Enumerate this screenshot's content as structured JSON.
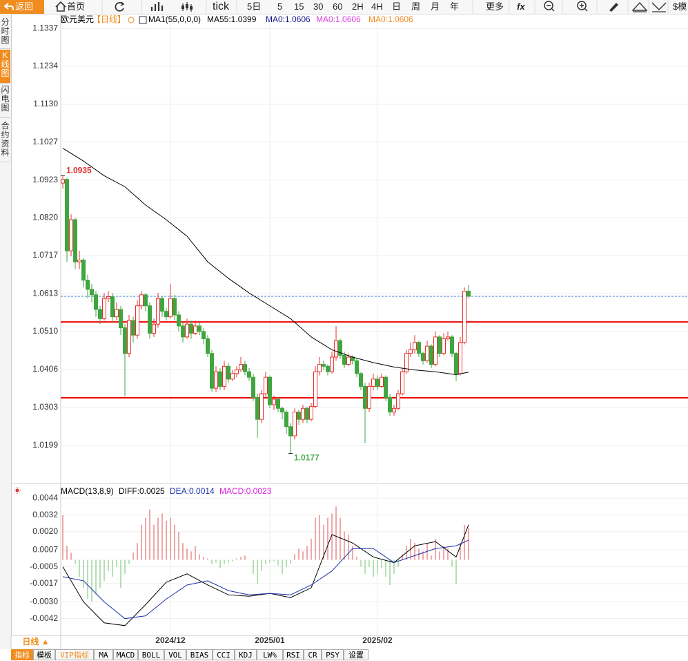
{
  "toolbar": {
    "back": "返回",
    "items": [
      "首页",
      "tick",
      "5日",
      "5",
      "15",
      "30",
      "60",
      "2H",
      "4H",
      "日",
      "周",
      "月",
      "年",
      "更多",
      "fx",
      "$模"
    ]
  },
  "sidebar": [
    "分时图",
    "K线图",
    "闪电图",
    "合约资料"
  ],
  "chart_data": [
    {
      "type": "candlestick",
      "title": "欧元美元",
      "period": "【日线】",
      "indicator": "MA1(55,0,0,0)",
      "legend": [
        {
          "text": "MA55:1.0399",
          "color": "#000000"
        },
        {
          "text": "MA0:1.0606",
          "color": "#1a1a8c"
        },
        {
          "text": "MA0:1.0606",
          "color": "#e040e0"
        },
        {
          "text": "MA0:1.0606",
          "color": "#f08c1e"
        }
      ],
      "ylim": [
        1.0095,
        1.1377
      ],
      "yticks": [
        1.1337,
        1.1234,
        {
          "value": 1.113,
          "label": "1.1130"
        },
        1.1027,
        1.0923,
        {
          "value": 1.082,
          "label": "1.0820"
        },
        1.0717,
        1.0613,
        {
          "value": 1.051,
          "label": "1.0510"
        },
        1.0406,
        1.0303,
        1.0199
      ],
      "xticks": [
        {
          "value": 26,
          "label": "2024/12"
        },
        {
          "value": 50,
          "label": "2025/01"
        },
        {
          "value": 76,
          "label": "2025/02"
        }
      ],
      "grid": true,
      "up_color": "#e8312f",
      "down_color": "#3fa63f",
      "candles": [
        [
          1.0915,
          1.0935,
          1.09,
          1.0925
        ],
        [
          1.0925,
          1.093,
          1.07,
          1.073
        ],
        [
          1.073,
          1.083,
          1.0715,
          1.0815
        ],
        [
          1.0815,
          1.082,
          1.068,
          1.07
        ],
        [
          1.07,
          1.073,
          1.068,
          1.0705
        ],
        [
          1.0705,
          1.071,
          1.063,
          1.065
        ],
        [
          1.065,
          1.0665,
          1.06,
          1.0625
        ],
        [
          1.0625,
          1.064,
          1.059,
          1.061
        ],
        [
          1.061,
          1.062,
          1.055,
          1.057
        ],
        [
          1.057,
          1.058,
          1.053,
          1.0545
        ],
        [
          1.0545,
          1.0615,
          1.054,
          1.06
        ],
        [
          1.06,
          1.062,
          1.059,
          1.0605
        ],
        [
          1.0605,
          1.0615,
          1.0535,
          1.055
        ],
        [
          1.055,
          1.059,
          1.054,
          1.057
        ],
        [
          1.057,
          1.058,
          1.05,
          1.052
        ],
        [
          1.052,
          1.053,
          1.0333,
          1.045
        ],
        [
          1.045,
          1.0555,
          1.044,
          1.054
        ],
        [
          1.054,
          1.055,
          1.048,
          1.05
        ],
        [
          1.05,
          1.0595,
          1.049,
          1.058
        ],
        [
          1.058,
          1.062,
          1.057,
          1.061
        ],
        [
          1.061,
          1.0615,
          1.0565,
          1.058
        ],
        [
          1.058,
          1.059,
          1.049,
          1.0505
        ],
        [
          1.0505,
          1.0545,
          1.0495,
          1.053
        ],
        [
          1.053,
          1.0615,
          1.052,
          1.06
        ],
        [
          1.06,
          1.0605,
          1.055,
          1.0565
        ],
        [
          1.0565,
          1.0575,
          1.054,
          1.055
        ],
        [
          1.055,
          1.064,
          1.0545,
          1.06
        ],
        [
          1.06,
          1.061,
          1.054,
          1.0555
        ],
        [
          1.0555,
          1.0565,
          1.051,
          1.0525
        ],
        [
          1.0525,
          1.0535,
          1.048,
          1.0495
        ],
        [
          1.0495,
          1.0545,
          1.049,
          1.053
        ],
        [
          1.053,
          1.054,
          1.049,
          1.0505
        ],
        [
          1.0505,
          1.054,
          1.05,
          1.0525
        ],
        [
          1.0525,
          1.0535,
          1.05,
          1.051
        ],
        [
          1.051,
          1.052,
          1.0475,
          1.049
        ],
        [
          1.049,
          1.05,
          1.044,
          1.045
        ],
        [
          1.045,
          1.046,
          1.0345,
          1.0355
        ],
        [
          1.0355,
          1.0415,
          1.0345,
          1.04
        ],
        [
          1.04,
          1.041,
          1.035,
          1.036
        ],
        [
          1.036,
          1.043,
          1.035,
          1.0415
        ],
        [
          1.0415,
          1.0425,
          1.037,
          1.038
        ],
        [
          1.038,
          1.0405,
          1.0375,
          1.0395
        ],
        [
          1.0395,
          1.0415,
          1.0385,
          1.0405
        ],
        [
          1.0405,
          1.044,
          1.04,
          1.042
        ],
        [
          1.042,
          1.043,
          1.039,
          1.04
        ],
        [
          1.04,
          1.041,
          1.0375,
          1.0385
        ],
        [
          1.0385,
          1.0395,
          1.032,
          1.033
        ],
        [
          1.033,
          1.034,
          1.022,
          1.027
        ],
        [
          1.027,
          1.035,
          1.026,
          1.034
        ],
        [
          1.034,
          1.04,
          1.033,
          1.0385
        ],
        [
          1.0385,
          1.039,
          1.03,
          1.031
        ],
        [
          1.031,
          1.0335,
          1.0295,
          1.0325
        ],
        [
          1.0325,
          1.033,
          1.029,
          1.03
        ],
        [
          1.03,
          1.0305,
          1.027,
          1.029
        ],
        [
          1.029,
          1.0295,
          1.023,
          1.025
        ],
        [
          1.025,
          1.026,
          1.0177,
          1.0225
        ],
        [
          1.0225,
          1.03,
          1.0215,
          1.029
        ],
        [
          1.029,
          1.0295,
          1.0255,
          1.027
        ],
        [
          1.027,
          1.031,
          1.026,
          1.03
        ],
        [
          1.03,
          1.0305,
          1.026,
          1.027
        ],
        [
          1.027,
          1.0315,
          1.0265,
          1.0305
        ],
        [
          1.0305,
          1.0415,
          1.03,
          1.04
        ],
        [
          1.04,
          1.044,
          1.039,
          1.042
        ],
        [
          1.042,
          1.043,
          1.0405,
          1.0415
        ],
        [
          1.0415,
          1.042,
          1.039,
          1.04
        ],
        [
          1.04,
          1.0455,
          1.0395,
          1.044
        ],
        [
          1.044,
          1.0525,
          1.043,
          1.0485
        ],
        [
          1.0485,
          1.049,
          1.0435,
          1.0445
        ],
        [
          1.0445,
          1.0455,
          1.041,
          1.042
        ],
        [
          1.042,
          1.045,
          1.0415,
          1.044
        ],
        [
          1.044,
          1.0445,
          1.042,
          1.043
        ],
        [
          1.043,
          1.0435,
          1.0385,
          1.0395
        ],
        [
          1.0395,
          1.04,
          1.035,
          1.036
        ],
        [
          1.036,
          1.037,
          1.0206,
          1.03
        ],
        [
          1.03,
          1.037,
          1.029,
          1.036
        ],
        [
          1.036,
          1.0395,
          1.035,
          1.038
        ],
        [
          1.038,
          1.039,
          1.035,
          1.036
        ],
        [
          1.036,
          1.0395,
          1.0355,
          1.0385
        ],
        [
          1.0385,
          1.039,
          1.032,
          1.033
        ],
        [
          1.033,
          1.034,
          1.028,
          1.029
        ],
        [
          1.029,
          1.031,
          1.028,
          1.03
        ],
        [
          1.03,
          1.035,
          1.0295,
          1.034
        ],
        [
          1.034,
          1.041,
          1.0335,
          1.04
        ],
        [
          1.04,
          1.046,
          1.0395,
          1.045
        ],
        [
          1.045,
          1.048,
          1.044,
          1.046
        ],
        [
          1.046,
          1.05,
          1.045,
          1.048
        ],
        [
          1.048,
          1.0485,
          1.044,
          1.045
        ],
        [
          1.045,
          1.0455,
          1.042,
          1.043
        ],
        [
          1.043,
          1.0485,
          1.0425,
          1.047
        ],
        [
          1.047,
          1.0475,
          1.041,
          1.042
        ],
        [
          1.042,
          1.051,
          1.0415,
          1.0495
        ],
        [
          1.0495,
          1.05,
          1.044,
          1.045
        ],
        [
          1.045,
          1.0505,
          1.0445,
          1.049
        ],
        [
          1.049,
          1.051,
          1.0485,
          1.0495
        ],
        [
          1.0495,
          1.05,
          1.044,
          1.045
        ],
        [
          1.045,
          1.0455,
          1.0375,
          1.0395
        ],
        [
          1.0395,
          1.0495,
          1.039,
          1.048
        ],
        [
          1.048,
          1.063,
          1.0475,
          1.062
        ],
        [
          1.062,
          1.0636,
          1.06,
          1.0606
        ]
      ],
      "ma55": {
        "color": "#000000",
        "x": [
          0,
          5,
          10,
          15,
          20,
          25,
          30,
          35,
          40,
          45,
          50,
          55,
          60,
          65,
          70,
          75,
          80,
          85,
          90,
          95,
          98
        ],
        "values": [
          1.101,
          1.0975,
          1.0935,
          1.0905,
          1.0855,
          1.0815,
          1.077,
          1.07,
          1.0655,
          1.0615,
          1.058,
          1.0545,
          1.0495,
          1.046,
          1.044,
          1.0425,
          1.0413,
          1.0405,
          1.04,
          1.0392,
          1.0399
        ]
      },
      "levels": [
        {
          "value": 1.0536,
          "color": "#ee0000"
        },
        {
          "value": 1.0329,
          "color": "#ee0000"
        }
      ],
      "price_line": {
        "value": 1.0606,
        "color": "#3a7bd5"
      },
      "high_label_color": "#e03030",
      "low_label_color": "#4caf50"
    },
    {
      "type": "macd",
      "title": "MACD(13,8,9)",
      "legend": [
        {
          "text": "DIFF:0.0025",
          "color": "#000000"
        },
        {
          "text": "DEA:0.0014",
          "color": "#1c2fa8"
        },
        {
          "text": "MACD:0.0023",
          "color": "#e020e0"
        }
      ],
      "ylim": [
        -0.0054,
        0.0053
      ],
      "yticks": [
        0.0044,
        0.0032,
        {
          "value": 0.002,
          "label": "0.0020"
        },
        0.0007,
        -0.0005,
        -0.0017,
        {
          "value": -0.003,
          "label": "-0.0030"
        },
        -0.0042
      ],
      "grid": true,
      "up_color": "#e05050",
      "down_color": "#6cbf6c",
      "histogram": [
        0.0032,
        0.001,
        0.0005,
        -0.0003,
        -0.0012,
        -0.002,
        -0.0028,
        -0.003,
        -0.0025,
        -0.002,
        -0.0015,
        -0.0008,
        -0.0012,
        -0.0005,
        -0.002,
        -0.001,
        -0.0003,
        0.0005,
        0.0012,
        0.0025,
        0.003,
        0.0036,
        0.0025,
        0.003,
        0.0033,
        0.0028,
        0.003,
        0.0025,
        0.002,
        0.0012,
        0.0008,
        0.0006,
        0.001,
        0.0004,
        0.0002,
        0.0001,
        -0.0003,
        -0.0002,
        -0.0006,
        -0.0003,
        -0.0002,
        -0.0001,
        0.0001,
        0.0002,
        0.0003,
        0,
        -0.001,
        -0.0017,
        -0.0008,
        -0.0003,
        -0.0002,
        -0.0001,
        -0.0004,
        -0.001,
        -0.0005,
        -0.0003,
        0.0004,
        0.0008,
        0.0006,
        0.001,
        0.0015,
        0.003,
        0.0032,
        0.0025,
        0.003,
        0.0033,
        0.0038,
        0.003,
        0.002,
        0.0018,
        0.001,
        0.0002,
        -0.0005,
        -0.001,
        -0.0005,
        -0.0012,
        -0.001,
        -0.0006,
        -0.0012,
        -0.0018,
        -0.001,
        -0.0005,
        0.0004,
        0.001,
        0.0015,
        0.0012,
        0.0008,
        0.0006,
        0.0012,
        0.0003,
        0.0015,
        0.0006,
        0.001,
        0.0008,
        -0.0005,
        -0.0017,
        0.0012,
        0.0025,
        0.0023
      ],
      "series": [
        {
          "color": "#000000",
          "x": [
            0,
            5,
            10,
            15,
            20,
            25,
            30,
            35,
            40,
            45,
            50,
            55,
            60,
            65,
            70,
            75,
            80,
            85,
            90,
            95,
            98
          ],
          "values": [
            -0.0005,
            -0.003,
            -0.0045,
            -0.0047,
            -0.0032,
            -0.0016,
            -0.001,
            -0.0018,
            -0.0025,
            -0.0026,
            -0.0024,
            -0.0027,
            -0.002,
            0.0018,
            0.0012,
            0.0002,
            -0.0002,
            0.001,
            0.0013,
            0.0002,
            0.0025
          ]
        },
        {
          "color": "#1c2fa8",
          "x": [
            0,
            5,
            10,
            15,
            20,
            25,
            30,
            35,
            40,
            45,
            50,
            55,
            60,
            65,
            70,
            75,
            80,
            85,
            90,
            95,
            98
          ],
          "values": [
            -0.0012,
            -0.0015,
            -0.003,
            -0.0042,
            -0.004,
            -0.0028,
            -0.0018,
            -0.0015,
            -0.0022,
            -0.0025,
            -0.0024,
            -0.0025,
            -0.0018,
            -0.0008,
            0.0008,
            0.0008,
            -0.0002,
            0.0003,
            0.0008,
            0.001,
            0.0014
          ]
        }
      ]
    }
  ],
  "footer": {
    "period_button": "日线 ▲",
    "tabs": [
      "指标",
      "模板",
      "VIP指标",
      "MA",
      "MACD",
      "BOLL",
      "VOL",
      "BIAS",
      "CCI",
      "KDJ",
      "LW%",
      "RSI",
      "CR",
      "PSY",
      "设置"
    ]
  }
}
